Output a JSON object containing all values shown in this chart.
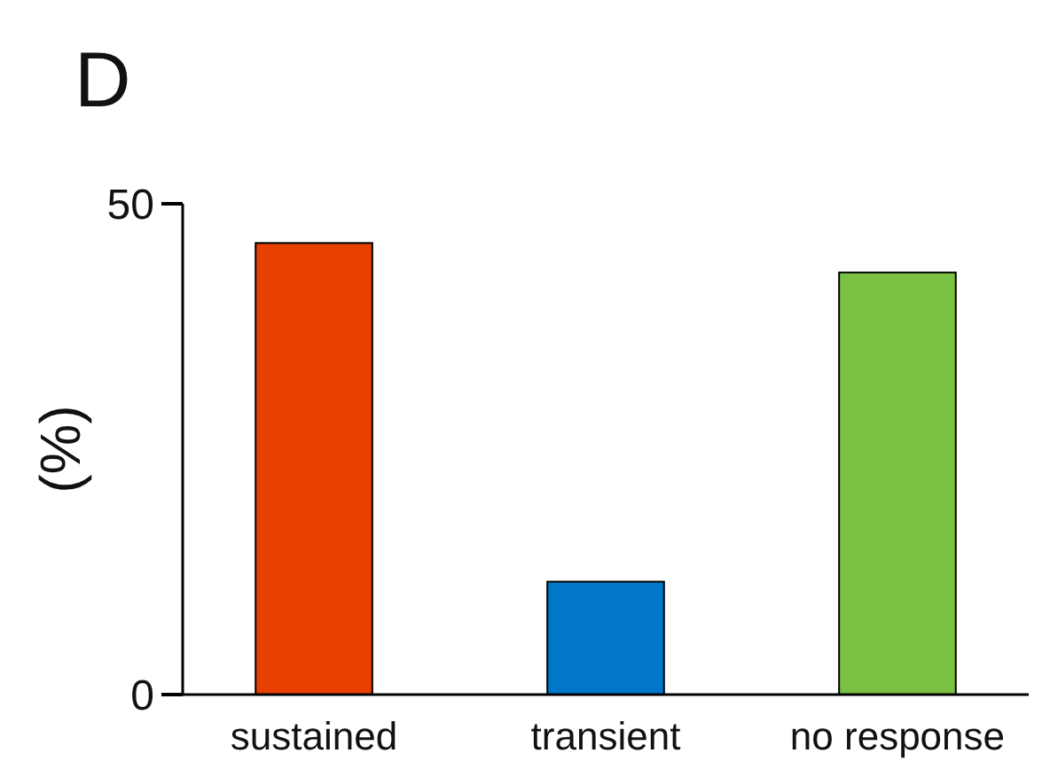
{
  "chart_data": {
    "type": "bar",
    "title": "D",
    "ylabel": "(%)",
    "categories": [
      "sustained",
      "transient",
      "no response"
    ],
    "values": [
      46,
      11.5,
      43
    ],
    "colors": [
      "#e84000",
      "#0077c8",
      "#7ac143"
    ],
    "ylim": [
      0,
      50
    ],
    "yticks": [
      0,
      50
    ],
    "grid": false
  }
}
